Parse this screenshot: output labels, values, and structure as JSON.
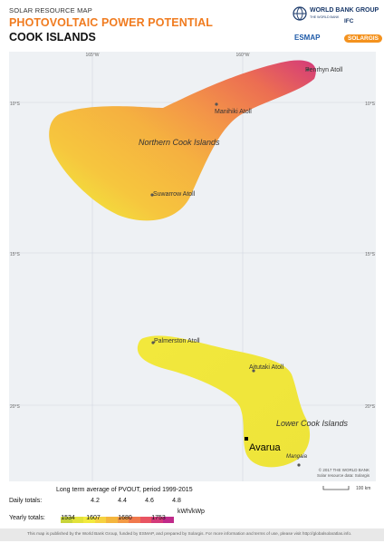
{
  "header": {
    "map_type": "SOLAR RESOURCE MAP",
    "title": "PHOTOVOLTAIC POWER POTENTIAL",
    "country": "COOK ISLANDS"
  },
  "logos": {
    "world_bank": "WORLD BANK GROUP",
    "world_bank_sub": "THE WORLD BANK",
    "ifc": "IFC",
    "esmap": "ESMAP",
    "solargis": "SOLARGIS"
  },
  "map": {
    "longitude_labels": [
      "165°W",
      "160°W"
    ],
    "latitude_labels_left": [
      "10°S",
      "15°S",
      "20°S"
    ],
    "latitude_labels_right": [
      "10°S",
      "15°S",
      "20°S"
    ],
    "islands": [
      "Penrhyn Atoll",
      "Manihiki Atoll",
      "Suwarrow Atoll",
      "Palmerston Atoll",
      "Aitutaki Atoll",
      "Mangaia"
    ],
    "regions": [
      "Northern Cook Islands",
      "Lower Cook Islands"
    ],
    "capital": "Avarua",
    "copyright": "© 2017 THE WORLD BANK",
    "source": "Solar resource data: Solargis",
    "scale": "100 km"
  },
  "legend": {
    "title": "Long term average of PVOUT, period 1999-2015",
    "daily_label": "Daily totals:",
    "daily_values": [
      "4.2",
      "4.4",
      "4.6",
      "4.8"
    ],
    "daily_unit": "kWh/kWp",
    "yearly_label": "Yearly totals:",
    "yearly_values": [
      "1534",
      "1607",
      "1680",
      "1753"
    ],
    "colors": [
      "#c8d43a",
      "#e2e23a",
      "#f2ea3e",
      "#f6d240",
      "#f4b63e",
      "#f39a45",
      "#f0784c",
      "#e85462",
      "#d43a7a",
      "#c02a8a"
    ]
  },
  "footer": {
    "text": "This map is published by the World Bank Group, funded by ESMAP, and prepared by Solargis. For more information and terms of use, please visit http://globalsolaratlas.info."
  }
}
